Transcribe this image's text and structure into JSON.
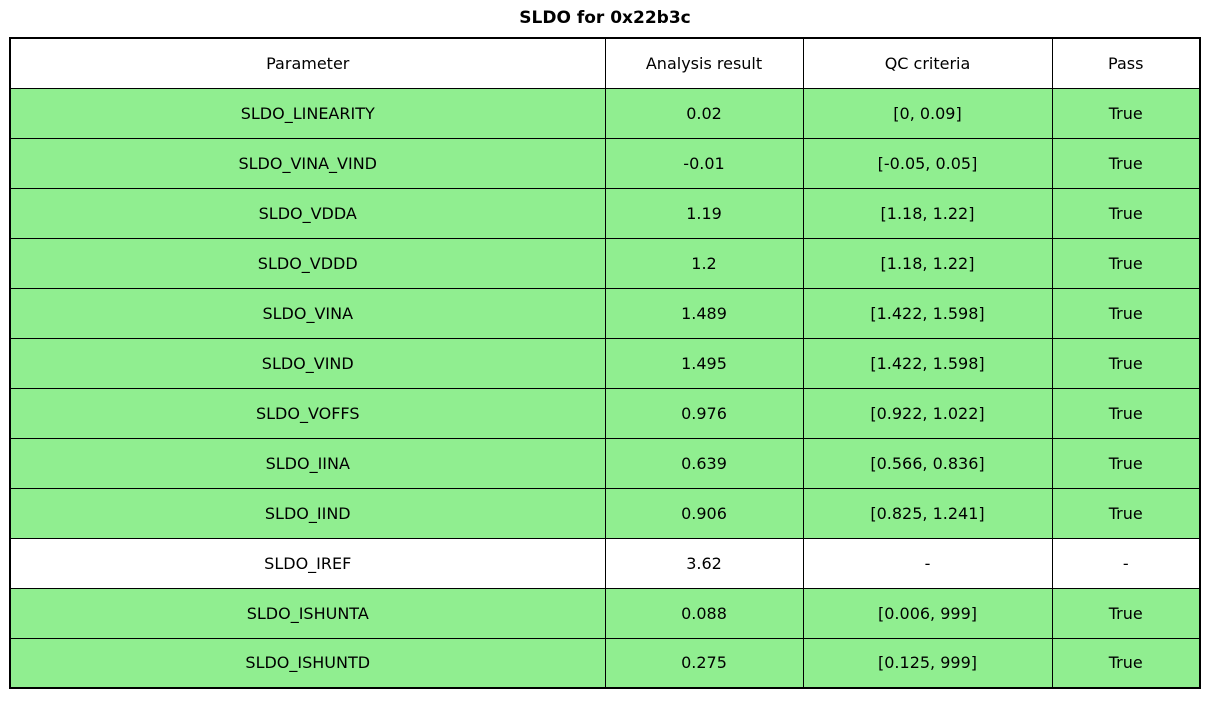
{
  "chart_data": {
    "type": "table",
    "title": "SLDO for 0x22b3c",
    "columns": [
      "Parameter",
      "Analysis result",
      "QC criteria",
      "Pass"
    ],
    "rows": [
      [
        "SLDO_LINEARITY",
        "0.02",
        "[0, 0.09]",
        "True"
      ],
      [
        "SLDO_VINA_VIND",
        "-0.01",
        "[-0.05, 0.05]",
        "True"
      ],
      [
        "SLDO_VDDA",
        "1.19",
        "[1.18, 1.22]",
        "True"
      ],
      [
        "SLDO_VDDD",
        "1.2",
        "[1.18, 1.22]",
        "True"
      ],
      [
        "SLDO_VINA",
        "1.489",
        "[1.422, 1.598]",
        "True"
      ],
      [
        "SLDO_VIND",
        "1.495",
        "[1.422, 1.598]",
        "True"
      ],
      [
        "SLDO_VOFFS",
        "0.976",
        "[0.922, 1.022]",
        "True"
      ],
      [
        "SLDO_IINA",
        "0.639",
        "[0.566, 0.836]",
        "True"
      ],
      [
        "SLDO_IIND",
        "0.906",
        "[0.825, 1.241]",
        "True"
      ],
      [
        "SLDO_IREF",
        "3.62",
        "-",
        "-"
      ],
      [
        "SLDO_ISHUNTA",
        "0.088",
        "[0.006, 999]",
        "True"
      ],
      [
        "SLDO_ISHUNTD",
        "0.275",
        "[0.125, 999]",
        "True"
      ]
    ],
    "layout": {
      "legend": "none",
      "grid": "table-borders",
      "pass_value": "True"
    }
  },
  "colors": {
    "pass_row_bg": "#90EE90",
    "neutral_row_bg": "#FFFFFF",
    "header_bg": "#FFFFFF",
    "border": "#000000",
    "text": "#000000"
  }
}
